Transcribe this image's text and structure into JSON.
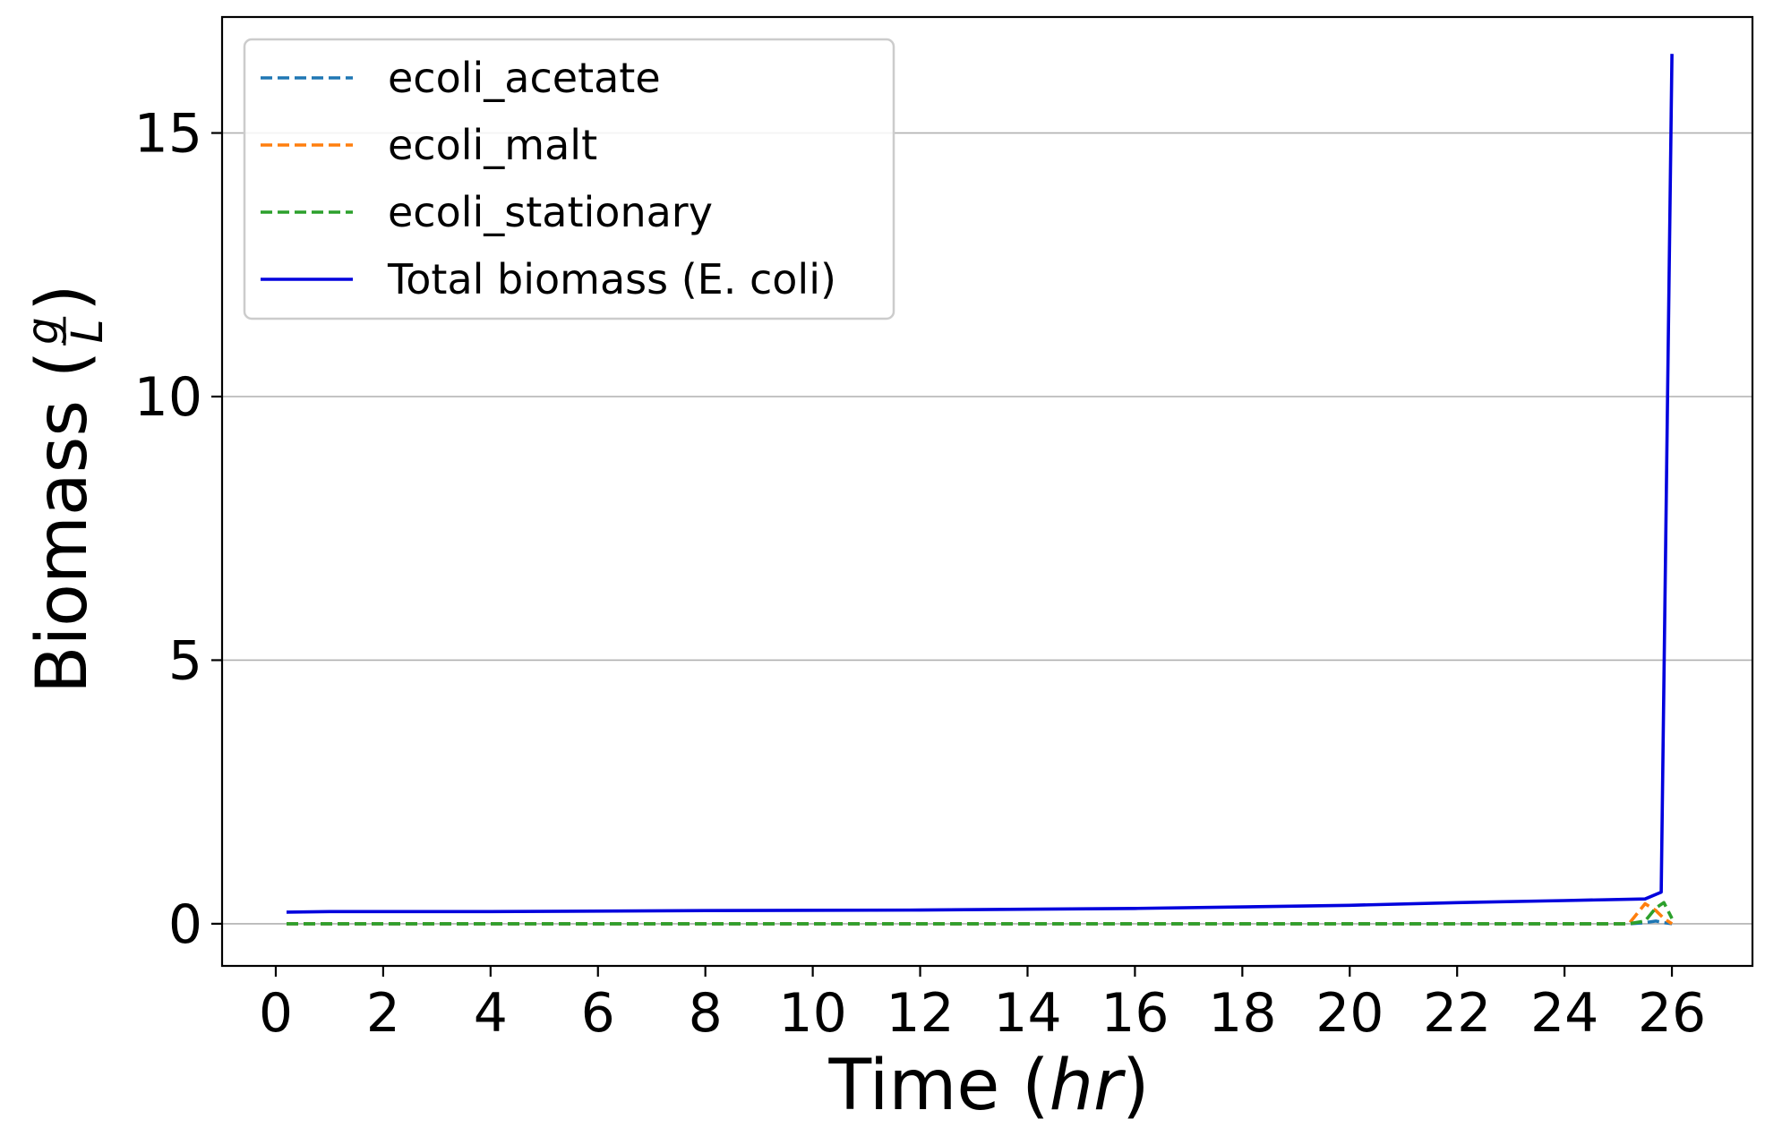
{
  "chart_data": {
    "type": "line",
    "xlabel_text": "Time (",
    "xlabel_italic": "hr",
    "xlabel_close": ")",
    "ylabel_text": "Biomass (",
    "ylabel_frac_num": "g",
    "ylabel_frac_den": "L",
    "ylabel_close": ")",
    "xlim": [
      -1,
      27.5
    ],
    "ylim": [
      -0.8,
      17.2
    ],
    "xticks": [
      0,
      2,
      4,
      6,
      8,
      10,
      12,
      14,
      16,
      18,
      20,
      22,
      24,
      26
    ],
    "yticks": [
      0,
      5,
      10,
      15
    ],
    "grid": "horizontal",
    "legend_position": "upper-left",
    "series": [
      {
        "name": "ecoli_acetate",
        "color": "#1f77b4",
        "style": "dashed",
        "x": [
          0.2,
          2,
          4,
          6,
          8,
          10,
          12,
          14,
          16,
          18,
          20,
          22,
          24,
          25.2,
          25.5,
          25.7,
          25.85,
          26.0
        ],
        "y": [
          0,
          0,
          0,
          0,
          0,
          0,
          0,
          0,
          0,
          0,
          0,
          0,
          0,
          0,
          0.02,
          0.05,
          0.02,
          0.0
        ]
      },
      {
        "name": "ecoli_malt",
        "color": "#ff7f0e",
        "style": "dashed",
        "x": [
          0.2,
          2,
          4,
          6,
          8,
          10,
          12,
          14,
          16,
          18,
          20,
          22,
          24,
          25.2,
          25.5,
          25.7,
          25.85,
          26.0
        ],
        "y": [
          0,
          0,
          0,
          0,
          0,
          0,
          0,
          0,
          0,
          0,
          0,
          0,
          0,
          0,
          0.38,
          0.25,
          0.1,
          0.0
        ]
      },
      {
        "name": "ecoli_stationary",
        "color": "#2ca02c",
        "style": "dashed",
        "x": [
          0.2,
          2,
          4,
          6,
          8,
          10,
          12,
          14,
          16,
          18,
          20,
          22,
          24,
          25.2,
          25.5,
          25.7,
          25.85,
          26.0
        ],
        "y": [
          0,
          0,
          0,
          0,
          0,
          0,
          0,
          0,
          0,
          0,
          0,
          0,
          0,
          0,
          0.05,
          0.3,
          0.4,
          0.1
        ]
      },
      {
        "name": "Total biomass (E. coli)",
        "color": "#0000dd",
        "style": "solid",
        "x": [
          0.2,
          1,
          4,
          8,
          12,
          16,
          20,
          22,
          24,
          25.5,
          25.8,
          26.0
        ],
        "y": [
          0.22,
          0.23,
          0.23,
          0.25,
          0.26,
          0.29,
          0.35,
          0.4,
          0.44,
          0.47,
          0.6,
          16.5
        ]
      }
    ]
  }
}
